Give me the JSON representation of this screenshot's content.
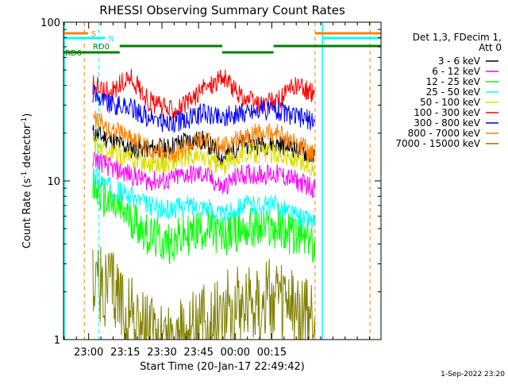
{
  "chart_data": {
    "type": "line",
    "title": "RHESSI Observing Summary Count Rates",
    "xlabel": "Start Time (20-Jan-17 22:49:42)",
    "ylabel_main": "Count Rate (s",
    "ylabel_sup1": "-1",
    "ylabel_mid": " detector",
    "ylabel_sup2": "-1",
    "ylabel_end": ")",
    "yscale": "log",
    "ylim": [
      1,
      100
    ],
    "xlim_minutes": [
      0,
      130
    ],
    "x_ticks": [
      "23:00",
      "23:15",
      "23:30",
      "23:45",
      "00:00",
      "00:15"
    ],
    "y_ticks": [
      "1",
      "10",
      "100"
    ],
    "legend_header": [
      "Det 1,3, FDecim 1,",
      "Att 0"
    ],
    "series": [
      {
        "name": "3 - 6 keV",
        "color": "#000000",
        "values": [
          20,
          18,
          16,
          16,
          16,
          18,
          18,
          14,
          17,
          17,
          17,
          16,
          14
        ]
      },
      {
        "name": "6 - 12 keV",
        "color": "#ff00ff",
        "values": [
          14,
          12,
          11,
          10,
          10,
          11,
          11,
          9,
          11,
          11,
          11,
          10,
          9
        ]
      },
      {
        "name": "12 - 25 keV",
        "color": "#00ff00",
        "values": [
          9,
          7,
          6,
          4.5,
          4,
          4.5,
          5,
          4.5,
          5,
          5,
          5,
          4.5,
          4
        ]
      },
      {
        "name": "25 - 50 keV",
        "color": "#00ffff",
        "values": [
          11,
          9,
          8,
          7,
          6.5,
          7,
          7,
          6,
          7,
          7,
          7,
          6,
          5.5
        ]
      },
      {
        "name": "50 - 100 keV",
        "color": "#dddd00",
        "values": [
          17,
          15,
          14,
          13,
          13,
          14,
          14,
          12,
          15,
          15,
          15,
          13,
          12
        ]
      },
      {
        "name": "100 - 300 keV",
        "color": "#ff0000",
        "values": [
          40,
          36,
          45,
          32,
          28,
          30,
          38,
          45,
          34,
          30,
          32,
          40,
          35
        ]
      },
      {
        "name": "300 - 800 keV",
        "color": "#0000ff",
        "values": [
          36,
          30,
          29,
          25,
          23,
          24,
          27,
          25,
          27,
          28,
          28,
          25,
          24
        ]
      },
      {
        "name": "800 - 7000 keV",
        "color": "#ff8000",
        "values": [
          25,
          21,
          19,
          16,
          15,
          16,
          18,
          16,
          19,
          20,
          20,
          17,
          15
        ]
      },
      {
        "name": "7000 - 15000 keV",
        "color": "#808000",
        "values": [
          2.5,
          2,
          1.5,
          1,
          1,
          1,
          1.2,
          1.5,
          1.7,
          1.8,
          1.7,
          1.5,
          1.2
        ]
      }
    ],
    "annotations": [
      "S",
      "N",
      "RD0",
      "RD6"
    ],
    "grid": false,
    "legend_placement": "right"
  },
  "footer": {
    "timestamp": "1-Sep-2022 23:20"
  }
}
